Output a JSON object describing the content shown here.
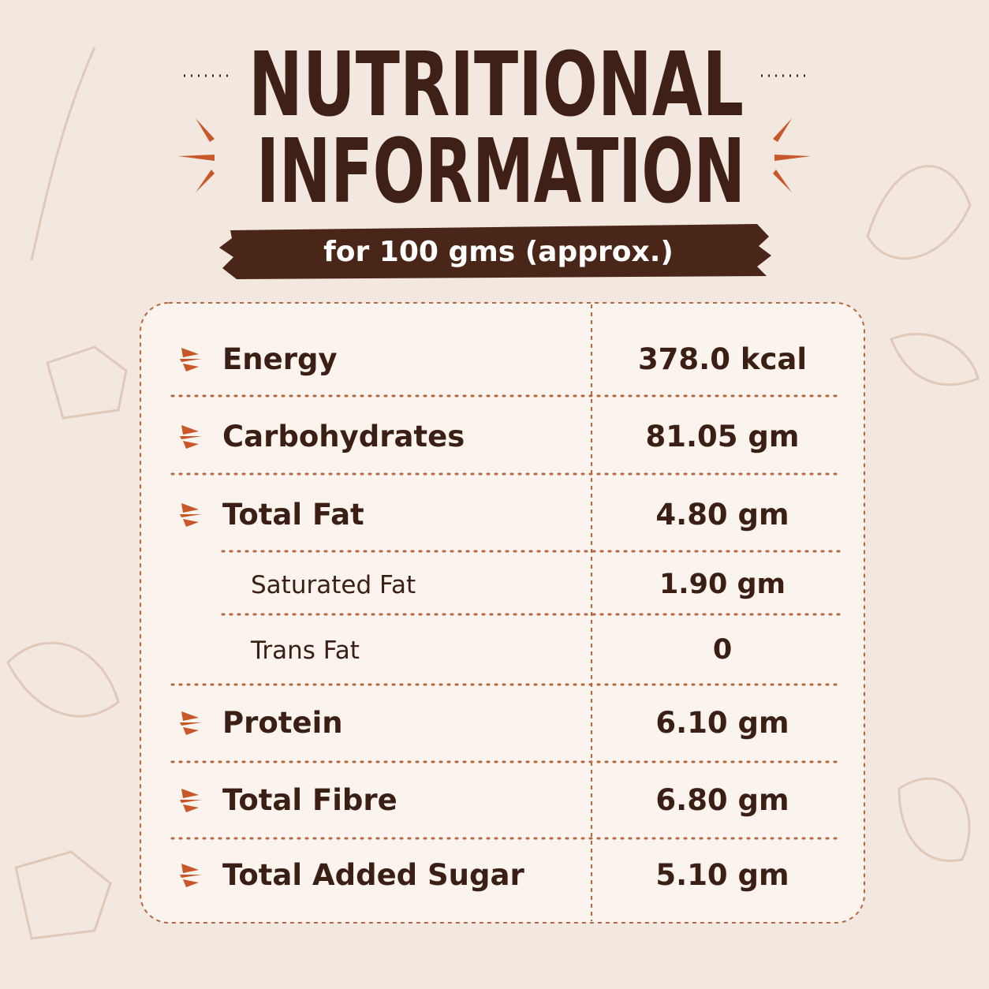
{
  "header": {
    "title_lines": [
      "NUTRITIONAL",
      "INFORMATION"
    ],
    "subtitle": "for 100 gms (approx.)"
  },
  "table": {
    "rows": [
      {
        "label": "Energy",
        "value": "378.0 kcal"
      },
      {
        "label": "Carbohydrates",
        "value": "81.05 gm"
      },
      {
        "label": "Total Fat",
        "value": "4.80 gm",
        "children": [
          {
            "label": "Saturated Fat",
            "value": "1.90 gm"
          },
          {
            "label": "Trans Fat",
            "value": "0"
          }
        ]
      },
      {
        "label": "Protein",
        "value": "6.10 gm"
      },
      {
        "label": "Total Fibre",
        "value": "6.80 gm"
      },
      {
        "label": "Total Added Sugar",
        "value": "5.10 gm"
      }
    ]
  }
}
